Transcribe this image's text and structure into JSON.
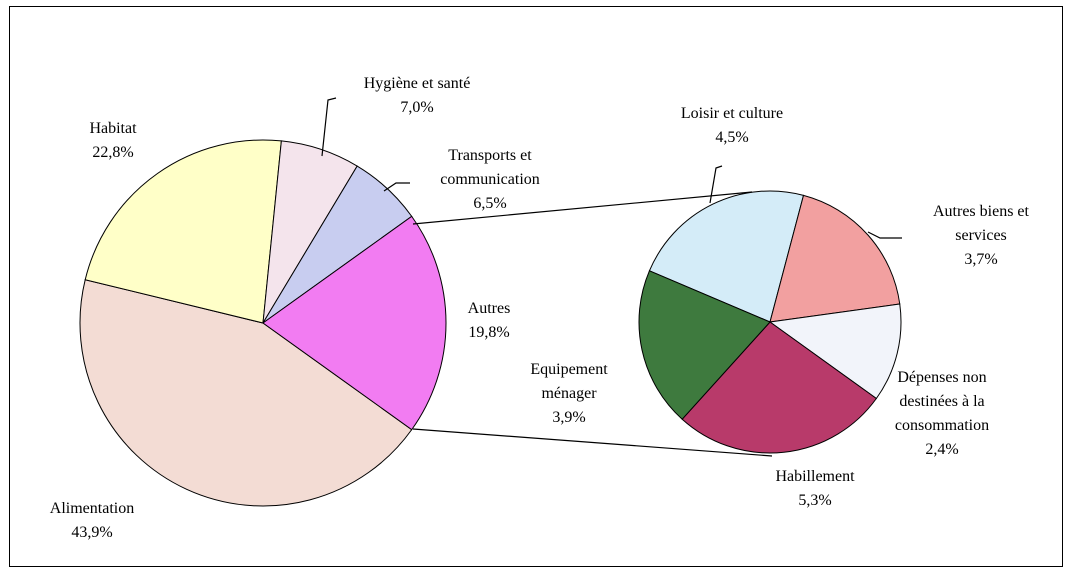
{
  "chart_data": [
    {
      "type": "pie",
      "categories": [
        "Alimentation",
        "Habitat",
        "Hygiène et santé",
        "Transports et communication",
        "Autres"
      ],
      "values": [
        43.9,
        22.8,
        7.0,
        6.5,
        19.8
      ],
      "value_labels": [
        "43,9%",
        "22,8%",
        "7,0%",
        "6,5%",
        "19,8%"
      ],
      "colors": [
        "#f3dcd4",
        "#ffffc8",
        "#f4e4ec",
        "#c8cdf0",
        "#f27cf2"
      ]
    },
    {
      "type": "pie",
      "categories": [
        "Loisir et culture",
        "Autres biens et services",
        "Dépenses non destinées à la consommation",
        "Habillement",
        "Equipement ménager"
      ],
      "values": [
        4.5,
        3.7,
        2.4,
        5.3,
        3.9
      ],
      "value_labels": [
        "4,5%",
        "3,7%",
        "2,4%",
        "5,3%",
        "3,9%"
      ],
      "colors": [
        "#d4ecf8",
        "#f2a0a0",
        "#f2f4fa",
        "#b83a6a",
        "#3e7a3e"
      ]
    }
  ]
}
